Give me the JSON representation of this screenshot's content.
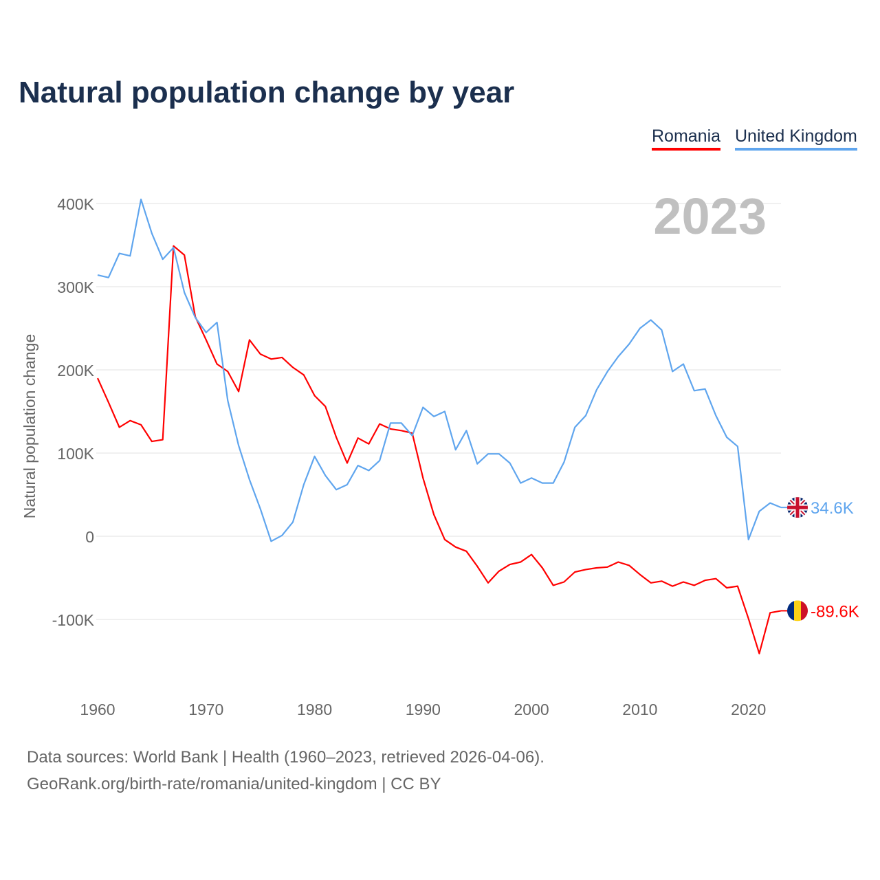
{
  "chart_data": {
    "type": "line",
    "title": "Natural population change by year",
    "ylabel": "Natural population change",
    "xlabel": "",
    "year_label": "2023",
    "ylim": [
      -150000,
      420000
    ],
    "xlim": [
      1960,
      2023
    ],
    "yticks": [
      {
        "v": 400000,
        "label": "400K"
      },
      {
        "v": 300000,
        "label": "300K"
      },
      {
        "v": 200000,
        "label": "200K"
      },
      {
        "v": 100000,
        "label": "100K"
      },
      {
        "v": 0,
        "label": "0"
      },
      {
        "v": -100000,
        "label": "-100K"
      }
    ],
    "xticks": [
      {
        "v": 1960,
        "label": "1960"
      },
      {
        "v": 1970,
        "label": "1970"
      },
      {
        "v": 1980,
        "label": "1980"
      },
      {
        "v": 1990,
        "label": "1990"
      },
      {
        "v": 2000,
        "label": "2000"
      },
      {
        "v": 2010,
        "label": "2010"
      },
      {
        "v": 2020,
        "label": "2020"
      }
    ],
    "grid": true,
    "legend_position": "top-right",
    "x_start": 1960,
    "series": [
      {
        "name": "Romania",
        "color": "#ff0000",
        "end_label": "-89.6K",
        "flag": "romania",
        "values": [
          190,
          161,
          131,
          139,
          134,
          114,
          116,
          349,
          338,
          264,
          236,
          207,
          198,
          174,
          236,
          219,
          213,
          215,
          203,
          194,
          169,
          156,
          119,
          88,
          118,
          111,
          135,
          129,
          127,
          124,
          70,
          26,
          -4,
          -13,
          -18,
          -36,
          -56,
          -42,
          -34,
          -31,
          -22,
          -38,
          -59,
          -55,
          -43,
          -40,
          -38,
          -37,
          -31,
          -35,
          -46,
          -56,
          -54,
          -60,
          -55,
          -59,
          -53,
          -51,
          -62,
          -60,
          -99,
          -141,
          -92,
          -89.6
        ]
      },
      {
        "name": "United Kingdom",
        "color": "#5fa5ee",
        "end_label": "34.6K",
        "flag": "united-kingdom",
        "values": [
          314,
          311,
          340,
          337,
          405,
          364,
          333,
          347,
          293,
          263,
          245,
          257,
          163,
          109,
          68,
          33,
          -6,
          1,
          17,
          62,
          96,
          73,
          56,
          62,
          85,
          79,
          91,
          136,
          136,
          121,
          155,
          144,
          150,
          104,
          127,
          87,
          99,
          99,
          88,
          64,
          70,
          64,
          64,
          89,
          131,
          145,
          176,
          198,
          216,
          231,
          250,
          260,
          248,
          198,
          207,
          175,
          177,
          145,
          119,
          108,
          -4,
          30,
          40,
          34.6
        ]
      }
    ],
    "value_unit": "thousands"
  },
  "footer": {
    "line1": "Data sources: World Bank | Health (1960–2023, retrieved 2026-04-06).",
    "line2": "GeoRank.org/birth-rate/romania/united-kingdom | CC BY"
  }
}
